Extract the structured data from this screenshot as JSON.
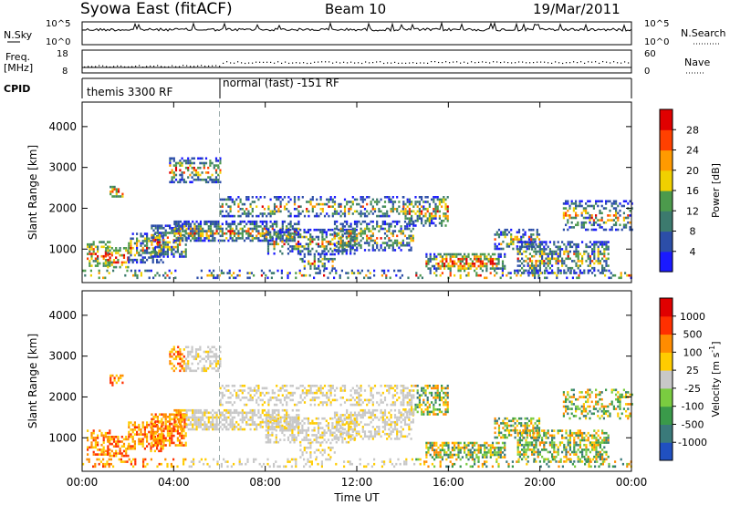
{
  "header": {
    "station": "Syowa East (fitACF)",
    "beam": "Beam 10",
    "date": "19/Mar/2011"
  },
  "top_panels": {
    "nsky_label": "N.Sky",
    "nsky_tick_top": "10^5",
    "nsky_tick_bottom": "10^0",
    "nsearch_label": "N.Search",
    "nsearch_tick_top": "10^5",
    "nsearch_tick_bottom": "10^0",
    "freq_label_line1": "Freq.",
    "freq_label_line2": "[MHz]",
    "freq_tick_top": "18",
    "freq_tick_bottom": "8",
    "nave_label": "Nave",
    "nave_tick_top": "60",
    "nave_tick_bottom": "0",
    "cpid_label": "CPID",
    "cpid_segments": [
      "themis 3300 RF",
      "normal (fast) -151 RF"
    ]
  },
  "chart_data": [
    {
      "type": "heatmap",
      "name": "power",
      "ylabel": "Slant Range [km]",
      "yticks": [
        "1000",
        "2000",
        "3000",
        "4000"
      ],
      "ylim": [
        180,
        4600
      ],
      "colorbar_label": "Power [dB]",
      "colorbar_ticks": [
        "4",
        "8",
        "12",
        "16",
        "20",
        "24",
        "28"
      ],
      "colorbar_colors": [
        "#1a1aff",
        "#2c4ea8",
        "#3c7a6e",
        "#4c9a4c",
        "#f0d000",
        "#ff9a00",
        "#ff4000",
        "#e00000"
      ]
    },
    {
      "type": "heatmap",
      "name": "velocity",
      "ylabel": "Slant Range [km]",
      "yticks": [
        "1000",
        "2000",
        "3000",
        "4000"
      ],
      "ylim": [
        180,
        4600
      ],
      "colorbar_label": "Velocity [m s",
      "colorbar_label_sup": "-1",
      "colorbar_ticks": [
        "1000",
        "500",
        "100",
        "25",
        "-25",
        "-100",
        "-500",
        "-1000"
      ],
      "colorbar_colors": [
        "#2050c0",
        "#3a7a7a",
        "#3a9a4a",
        "#7acc40",
        "#c8c8c8",
        "#ffcc00",
        "#ff8c00",
        "#ff3000",
        "#e00000"
      ]
    }
  ],
  "xaxis": {
    "label": "Time UT",
    "ticks": [
      "00:00",
      "04:00",
      "08:00",
      "12:00",
      "16:00",
      "20:00",
      "00:00"
    ]
  }
}
